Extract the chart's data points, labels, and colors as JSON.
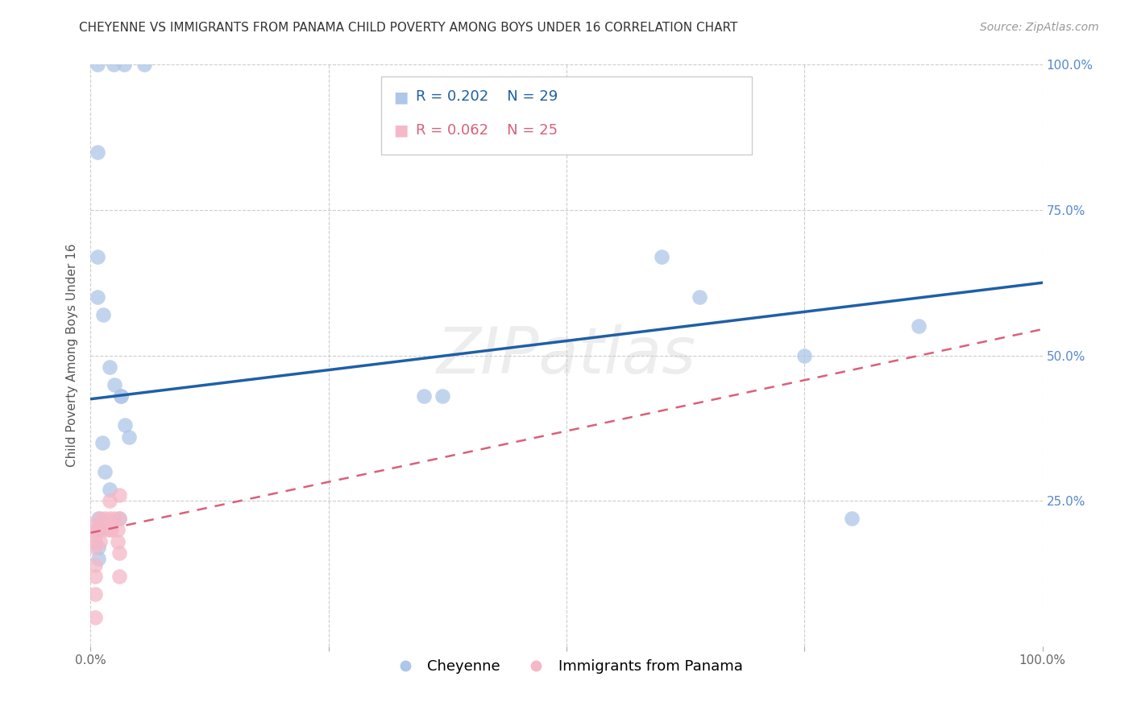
{
  "title": "CHEYENNE VS IMMIGRANTS FROM PANAMA CHILD POVERTY AMONG BOYS UNDER 16 CORRELATION CHART",
  "source": "Source: ZipAtlas.com",
  "ylabel": "Child Poverty Among Boys Under 16",
  "background_color": "#ffffff",
  "grid_color": "#cccccc",
  "cheyenne": {
    "label": "Cheyenne",
    "color": "#aec6e8",
    "line_color": "#1f5fa6",
    "R": 0.202,
    "N": 29,
    "points_x": [
      0.007,
      0.024,
      0.035,
      0.056,
      0.007,
      0.007,
      0.007,
      0.013,
      0.02,
      0.025,
      0.032,
      0.032,
      0.036,
      0.012,
      0.02,
      0.03,
      0.04,
      0.35,
      0.37,
      0.6,
      0.64,
      0.75,
      0.8,
      0.87,
      0.015,
      0.008,
      0.008,
      0.008,
      0.008
    ],
    "points_y": [
      1.0,
      1.0,
      1.0,
      1.0,
      0.85,
      0.67,
      0.6,
      0.57,
      0.48,
      0.45,
      0.43,
      0.43,
      0.38,
      0.35,
      0.27,
      0.22,
      0.36,
      0.43,
      0.43,
      0.67,
      0.6,
      0.5,
      0.22,
      0.55,
      0.3,
      0.22,
      0.2,
      0.17,
      0.15
    ]
  },
  "panama": {
    "label": "Immigrants from Panama",
    "color": "#f4b8c8",
    "line_color": "#d9607a",
    "R": 0.062,
    "N": 25,
    "points_x": [
      0.005,
      0.005,
      0.005,
      0.005,
      0.005,
      0.005,
      0.005,
      0.005,
      0.005,
      0.01,
      0.01,
      0.01,
      0.015,
      0.015,
      0.02,
      0.02,
      0.02,
      0.022,
      0.025,
      0.028,
      0.028,
      0.03,
      0.03,
      0.03,
      0.03
    ],
    "points_y": [
      0.21,
      0.2,
      0.19,
      0.18,
      0.17,
      0.14,
      0.12,
      0.09,
      0.05,
      0.22,
      0.2,
      0.18,
      0.22,
      0.2,
      0.25,
      0.22,
      0.2,
      0.2,
      0.22,
      0.2,
      0.18,
      0.26,
      0.22,
      0.16,
      0.12
    ]
  },
  "cheyenne_trend": [
    0.0,
    1.0,
    0.425,
    0.625
  ],
  "panama_trend": [
    0.0,
    1.0,
    0.195,
    0.545
  ],
  "title_fontsize": 11,
  "source_fontsize": 10,
  "axis_label_fontsize": 11,
  "tick_fontsize": 11,
  "legend_fontsize": 13,
  "watermark": "ZIPatlas"
}
